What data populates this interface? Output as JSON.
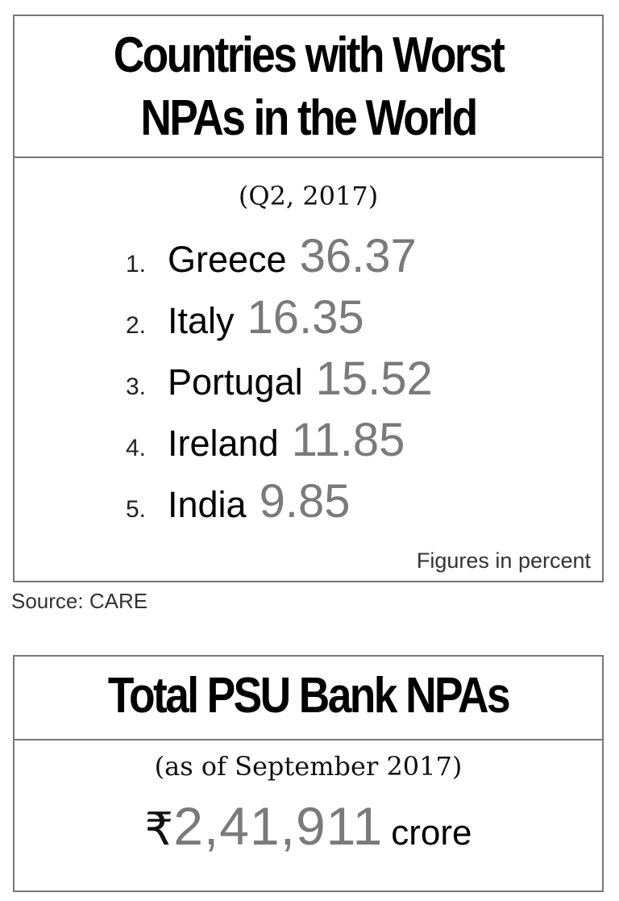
{
  "panel1": {
    "title": "Countries with Worst\nNPAs in the World",
    "period": "(Q2, 2017)",
    "rows": [
      {
        "rank": "1.",
        "country": "Greece",
        "value": "36.37"
      },
      {
        "rank": "2.",
        "country": "Italy",
        "value": "16.35"
      },
      {
        "rank": "3.",
        "country": "Portugal",
        "value": "15.52"
      },
      {
        "rank": "4.",
        "country": "Ireland",
        "value": "11.85"
      },
      {
        "rank": "5.",
        "country": "India",
        "value": "9.85"
      }
    ],
    "note": "Figures in percent"
  },
  "source": "Source: CARE",
  "panel2": {
    "title": "Total PSU Bank NPAs",
    "period": "(as of September 2017)",
    "currency": "₹",
    "amount": "2,41,911",
    "unit": "crore"
  },
  "colors": {
    "border": "#777777",
    "value_grey": "#7a7a7a",
    "text": "#111111"
  }
}
